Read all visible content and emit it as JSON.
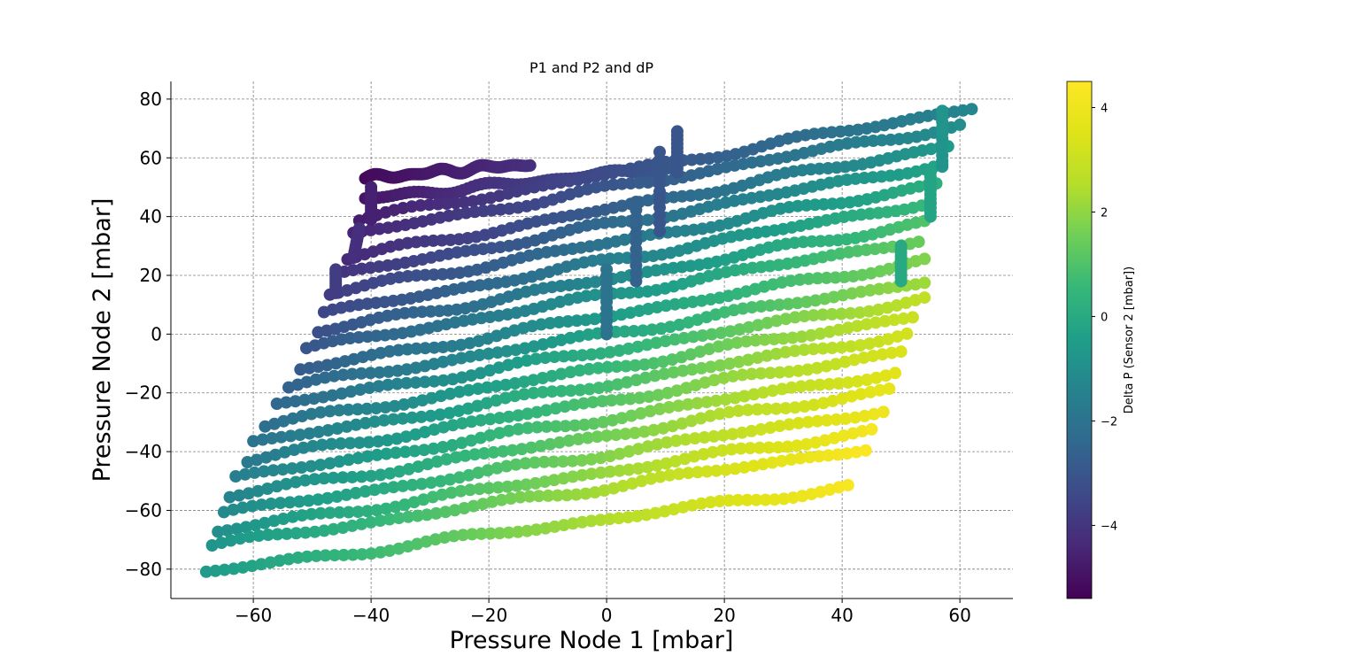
{
  "chart_data": {
    "type": "scatter",
    "title": "P1 and P2 and dP",
    "xlabel": "Pressure Node 1 [mbar]",
    "ylabel": "Pressure Node 2 [mbar]",
    "colorbar_label": "Delta P (Sensor 2 [mbar])",
    "xlim": [
      -74,
      69
    ],
    "ylim": [
      -90,
      86
    ],
    "xticks": [
      -60,
      -40,
      -20,
      0,
      20,
      40,
      60
    ],
    "yticks": [
      -80,
      -60,
      -40,
      -20,
      0,
      20,
      40,
      60,
      80
    ],
    "colorbar_range": [
      -5.4,
      4.5
    ],
    "colorbar_ticks": [
      -4,
      -2,
      0,
      2,
      4
    ],
    "colormap": "viridis",
    "grid": true,
    "note_series": "Horizontal bands of points: each band spans P1 from x_start to x_end at roughly constant P2 (rising slightly with P1). Color = dP, which increases with P1 and decreases with P2.",
    "bands": [
      {
        "x_start": -41,
        "x_end": -13,
        "y_start": 53,
        "y_end": 58,
        "c_start": -5.2,
        "c_end": -4.2
      },
      {
        "x_start": -41,
        "x_end": 12,
        "y_start": 46,
        "y_end": 57,
        "c_start": -4.9,
        "c_end": -2.9
      },
      {
        "x_start": -42,
        "x_end": 62,
        "y_start": 39,
        "y_end": 77,
        "c_start": -4.7,
        "c_end": -1.3
      },
      {
        "x_start": -43,
        "x_end": 60,
        "y_start": 34,
        "y_end": 71,
        "c_start": -4.5,
        "c_end": -1.0
      },
      {
        "x_start": -44,
        "x_end": 58,
        "y_start": 26,
        "y_end": 64,
        "c_start": -4.4,
        "c_end": -0.6
      },
      {
        "x_start": -46,
        "x_end": 57,
        "y_start": 20,
        "y_end": 58,
        "c_start": -4.1,
        "c_end": -0.2
      },
      {
        "x_start": -47,
        "x_end": 56,
        "y_start": 14,
        "y_end": 51,
        "c_start": -3.8,
        "c_end": 0.2
      },
      {
        "x_start": -48,
        "x_end": 55,
        "y_start": 7,
        "y_end": 45,
        "c_start": -3.5,
        "c_end": 0.6
      },
      {
        "x_start": -49,
        "x_end": 54,
        "y_start": 1,
        "y_end": 38,
        "c_start": -3.2,
        "c_end": 1.0
      },
      {
        "x_start": -51,
        "x_end": 53,
        "y_start": -5,
        "y_end": 32,
        "c_start": -3.0,
        "c_end": 1.4
      },
      {
        "x_start": -52,
        "x_end": 54,
        "y_start": -12,
        "y_end": 25,
        "c_start": -2.8,
        "c_end": 1.8
      },
      {
        "x_start": -54,
        "x_end": 54,
        "y_start": -18,
        "y_end": 18,
        "c_start": -2.6,
        "c_end": 2.2
      },
      {
        "x_start": -56,
        "x_end": 54,
        "y_start": -24,
        "y_end": 12,
        "c_start": -2.4,
        "c_end": 2.8
      },
      {
        "x_start": -58,
        "x_end": 52,
        "y_start": -31,
        "y_end": 6,
        "c_start": -2.2,
        "c_end": 3.0
      },
      {
        "x_start": -60,
        "x_end": 51,
        "y_start": -37,
        "y_end": 0,
        "c_start": -2.0,
        "c_end": 3.2
      },
      {
        "x_start": -61,
        "x_end": 50,
        "y_start": -43,
        "y_end": -6,
        "c_start": -1.8,
        "c_end": 3.4
      },
      {
        "x_start": -63,
        "x_end": 49,
        "y_start": -49,
        "y_end": -13,
        "c_start": -1.6,
        "c_end": 3.6
      },
      {
        "x_start": -64,
        "x_end": 48,
        "y_start": -55,
        "y_end": -19,
        "c_start": -1.4,
        "c_end": 3.8
      },
      {
        "x_start": -65,
        "x_end": 47,
        "y_start": -61,
        "y_end": -26,
        "c_start": -1.2,
        "c_end": 4.0
      },
      {
        "x_start": -66,
        "x_end": 45,
        "y_start": -67,
        "y_end": -33,
        "c_start": -1.0,
        "c_end": 4.2
      },
      {
        "x_start": -67,
        "x_end": 44,
        "y_start": -72,
        "y_end": -39,
        "c_start": -0.8,
        "c_end": 4.4
      },
      {
        "x_start": -68,
        "x_end": 41,
        "y_start": -81,
        "y_end": -52,
        "c_start": -0.6,
        "c_end": 4.3
      }
    ],
    "vertical_segments": [
      {
        "x": -40,
        "y_start": 39,
        "y_end": 50,
        "c": -4.6
      },
      {
        "x": -43,
        "x_end": -42,
        "y_start": 26,
        "y_end": 36,
        "c": -4.2
      },
      {
        "x": -46,
        "y_start": 14,
        "y_end": 22,
        "c": -3.8
      },
      {
        "x": 0,
        "y_start": 0,
        "y_end": 22,
        "c": -2.0
      },
      {
        "x": 5,
        "y_start": 18,
        "y_end": 45,
        "c": -2.6
      },
      {
        "x": 9,
        "y_start": 35,
        "y_end": 62,
        "c": -3.0
      },
      {
        "x": 12,
        "y_start": 55,
        "y_end": 69,
        "c": -3.0
      },
      {
        "x": 50,
        "y_start": 18,
        "y_end": 30,
        "c": 0.0
      },
      {
        "x": 55,
        "y_start": 40,
        "y_end": 55,
        "c": -0.2
      },
      {
        "x": 57,
        "y_start": 57,
        "y_end": 76,
        "c": -0.8
      }
    ]
  }
}
